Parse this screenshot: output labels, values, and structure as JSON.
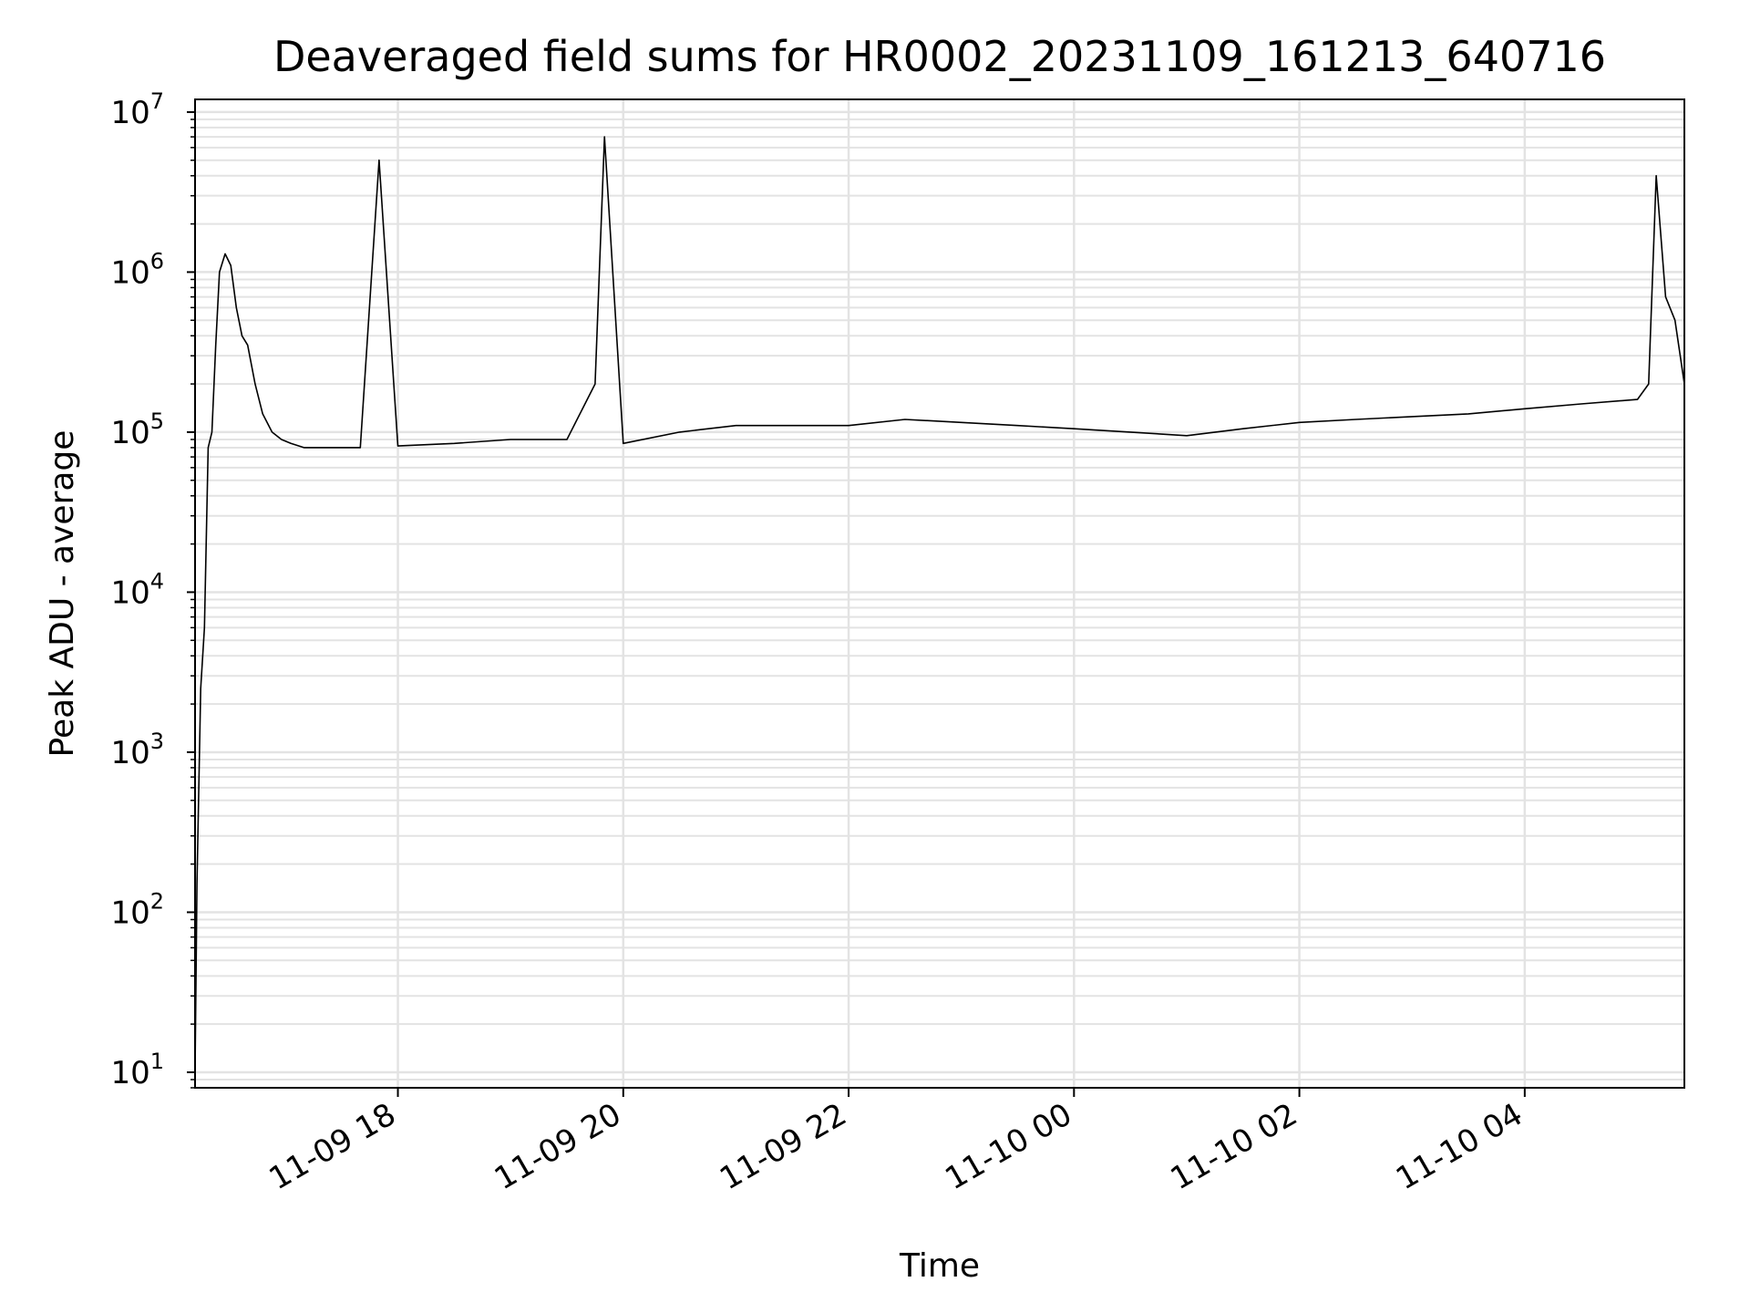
{
  "chart_data": {
    "type": "line",
    "title": "Deaveraged field sums for HR0002_20231109_161213_640716",
    "xlabel": "Time",
    "ylabel": "Peak ADU - average",
    "yscale": "log",
    "ylim": [
      8,
      12000000
    ],
    "xlim": [
      "2023-11-09 16:12",
      "2023-11-10 05:25"
    ],
    "grid": true,
    "line_color": "#000000",
    "grid_color": "#e3e3e3",
    "x_ticks": [
      {
        "value": "2023-11-09 18:00",
        "label": "11-09 18"
      },
      {
        "value": "2023-11-09 20:00",
        "label": "11-09 20"
      },
      {
        "value": "2023-11-09 22:00",
        "label": "11-09 22"
      },
      {
        "value": "2023-11-10 00:00",
        "label": "11-10 00"
      },
      {
        "value": "2023-11-10 02:00",
        "label": "11-10 02"
      },
      {
        "value": "2023-11-10 04:00",
        "label": "11-10 04"
      }
    ],
    "y_ticks": [
      {
        "value": 10,
        "base": "10",
        "exp": "1"
      },
      {
        "value": 100,
        "base": "10",
        "exp": "2"
      },
      {
        "value": 1000,
        "base": "10",
        "exp": "3"
      },
      {
        "value": 10000,
        "base": "10",
        "exp": "4"
      },
      {
        "value": 100000,
        "base": "10",
        "exp": "5"
      },
      {
        "value": 1000000,
        "base": "10",
        "exp": "6"
      },
      {
        "value": 10000000,
        "base": "10",
        "exp": "7"
      }
    ],
    "series": [
      {
        "x": [
          "2023-11-09 16:12",
          "2023-11-09 16:13",
          "2023-11-09 16:15",
          "2023-11-09 16:17",
          "2023-11-09 16:19",
          "2023-11-09 16:21",
          "2023-11-09 16:23",
          "2023-11-09 16:25",
          "2023-11-09 16:28",
          "2023-11-09 16:31",
          "2023-11-09 16:34",
          "2023-11-09 16:37",
          "2023-11-09 16:40",
          "2023-11-09 16:44",
          "2023-11-09 16:48",
          "2023-11-09 16:53",
          "2023-11-09 16:58",
          "2023-11-09 17:03",
          "2023-11-09 17:10",
          "2023-11-09 17:20",
          "2023-11-09 17:40",
          "2023-11-09 17:50",
          "2023-11-09 18:00",
          "2023-11-09 18:30",
          "2023-11-09 19:00",
          "2023-11-09 19:30",
          "2023-11-09 19:45",
          "2023-11-09 19:50",
          "2023-11-09 20:00",
          "2023-11-09 20:30",
          "2023-11-09 21:00",
          "2023-11-09 21:30",
          "2023-11-09 22:00",
          "2023-11-09 22:30",
          "2023-11-09 23:00",
          "2023-11-09 23:30",
          "2023-11-10 00:00",
          "2023-11-10 00:30",
          "2023-11-10 01:00",
          "2023-11-10 01:30",
          "2023-11-10 02:00",
          "2023-11-10 02:30",
          "2023-11-10 03:00",
          "2023-11-10 03:30",
          "2023-11-10 04:00",
          "2023-11-10 04:30",
          "2023-11-10 05:00",
          "2023-11-10 05:06",
          "2023-11-10 05:10",
          "2023-11-10 05:15",
          "2023-11-10 05:20",
          "2023-11-10 05:25"
        ],
        "y": [
          10,
          150,
          2500,
          6000,
          80000,
          100000,
          350000,
          1000000,
          1300000,
          1100000,
          600000,
          400000,
          350000,
          200000,
          130000,
          100000,
          90000,
          85000,
          80000,
          80000,
          80000,
          5000000,
          82000,
          85000,
          90000,
          90000,
          200000,
          7000000,
          85000,
          100000,
          110000,
          110000,
          110000,
          120000,
          115000,
          110000,
          105000,
          100000,
          95000,
          105000,
          115000,
          120000,
          125000,
          130000,
          140000,
          150000,
          160000,
          200000,
          4000000,
          700000,
          500000,
          200000
        ]
      }
    ]
  }
}
